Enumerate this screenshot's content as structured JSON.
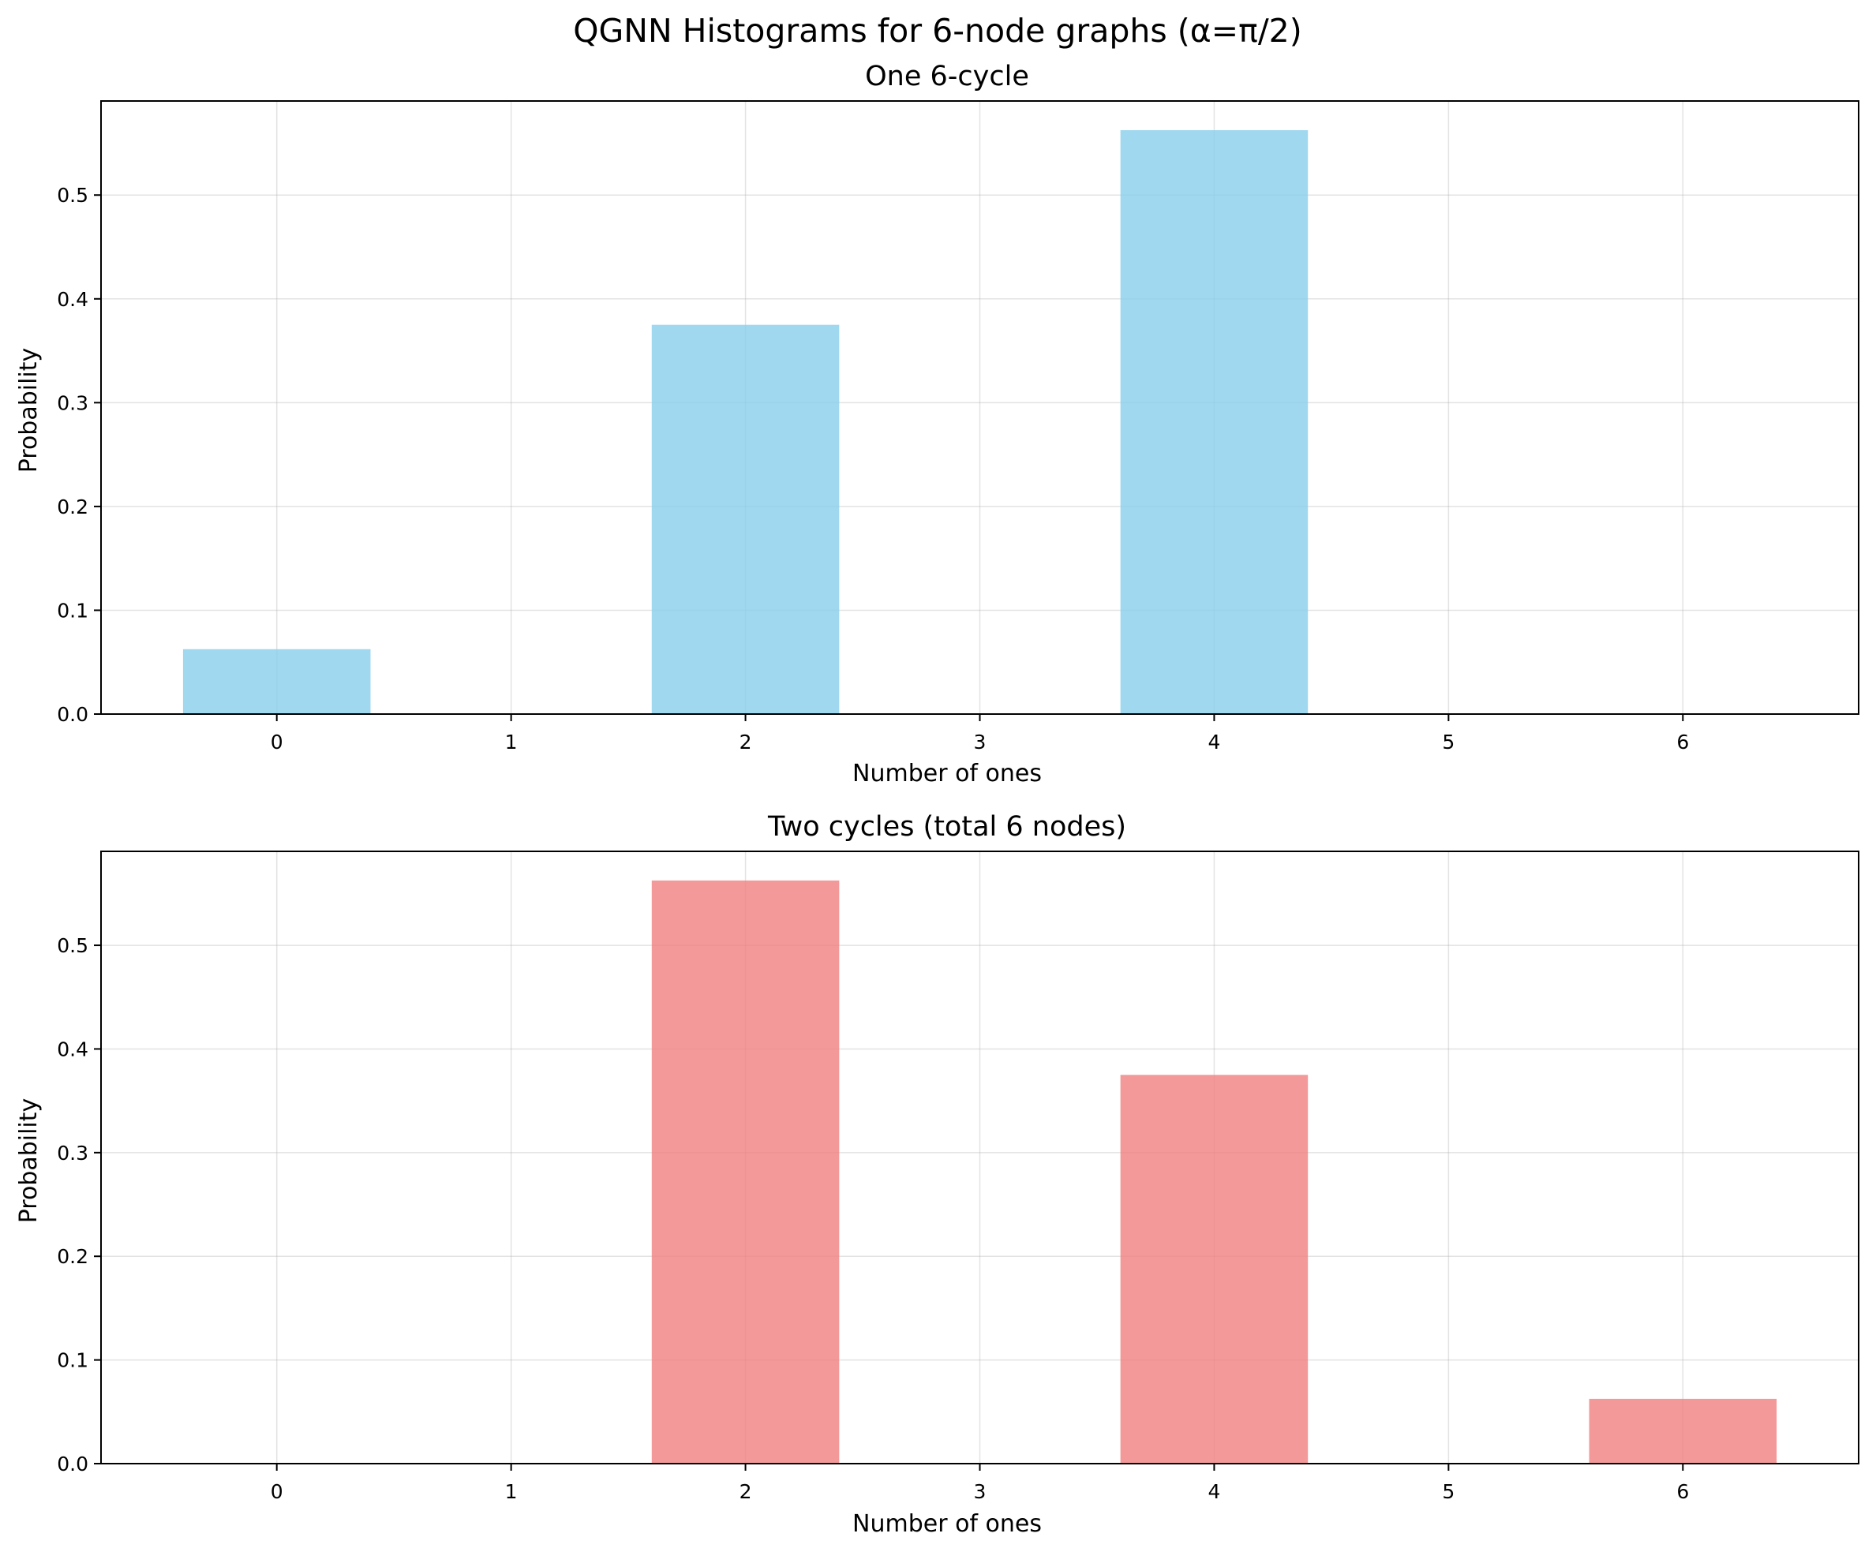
{
  "figure": {
    "suptitle": "QGNN Histograms for 6-node graphs (α=π/2)"
  },
  "chart_data": [
    {
      "type": "bar",
      "title": "One 6-cycle",
      "xlabel": "Number of ones",
      "ylabel": "Probability",
      "categories": [
        "0",
        "1",
        "2",
        "3",
        "4",
        "5",
        "6"
      ],
      "values": [
        0.0625,
        0,
        0.375,
        0,
        0.5625,
        0,
        0
      ],
      "xlim": [
        -0.75,
        6.75
      ],
      "ylim": [
        0,
        0.590625
      ],
      "yticks": [
        "0.0",
        "0.1",
        "0.2",
        "0.3",
        "0.4",
        "0.5"
      ],
      "color": "#87ceeb",
      "grid": true,
      "legend": "none"
    },
    {
      "type": "bar",
      "title": "Two cycles (total 6 nodes)",
      "xlabel": "Number of ones",
      "ylabel": "Probability",
      "categories": [
        "0",
        "1",
        "2",
        "3",
        "4",
        "5",
        "6"
      ],
      "values": [
        0,
        0,
        0.5625,
        0,
        0.375,
        0,
        0.0625
      ],
      "xlim": [
        -0.75,
        6.75
      ],
      "ylim": [
        0,
        0.590625
      ],
      "yticks": [
        "0.0",
        "0.1",
        "0.2",
        "0.3",
        "0.4",
        "0.5"
      ],
      "color": "#f08080",
      "grid": true,
      "legend": "none"
    }
  ]
}
